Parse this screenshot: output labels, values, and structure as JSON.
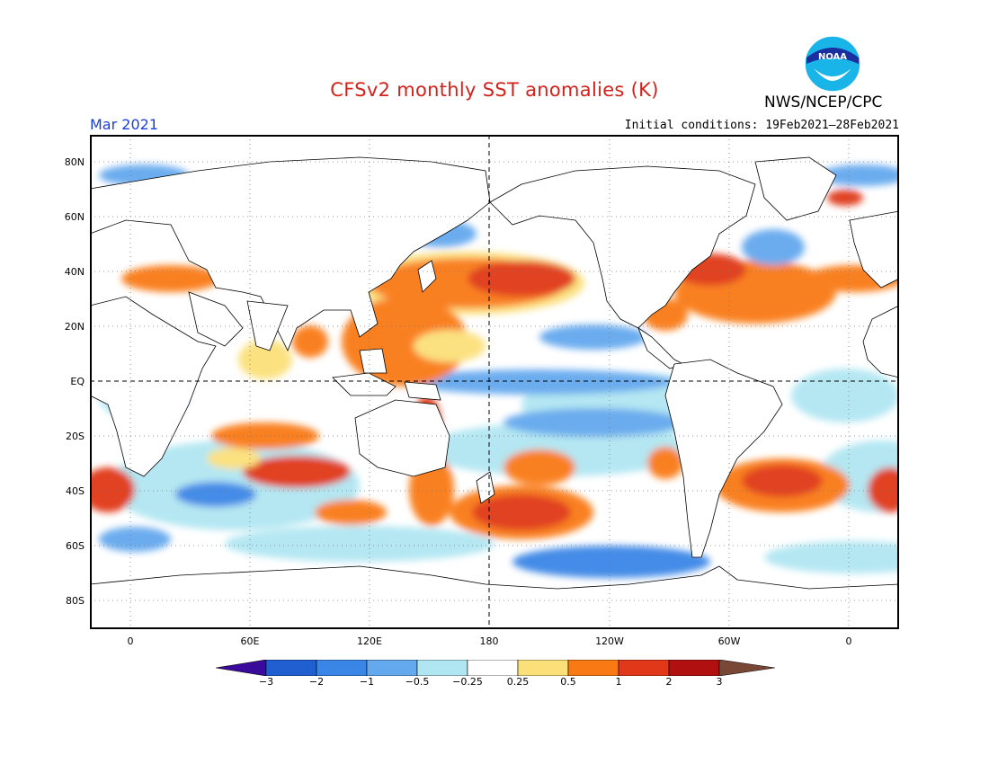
{
  "title": "CFSv2 monthly SST anomalies (K)",
  "agency": "NWS/NCEP/CPC",
  "logo_text": "NOAA",
  "month": "Mar 2021",
  "initial_conditions": "Initial conditions: 19Feb2021–28Feb2021",
  "map": {
    "lat_labels": [
      "80N",
      "60N",
      "40N",
      "20N",
      "EQ",
      "20S",
      "40S",
      "60S",
      "80S"
    ],
    "lon_labels": [
      "0",
      "60E",
      "120E",
      "180",
      "120W",
      "60W",
      "0"
    ],
    "reference_lines": [
      "equator",
      "dateline"
    ]
  },
  "colorbar": {
    "tick_labels": [
      "−3",
      "−2",
      "−1",
      "−0.5",
      "−0.25",
      "0.25",
      "0.5",
      "1",
      "2",
      "3"
    ],
    "colors": [
      "#3a0a9a",
      "#1f5fd0",
      "#3a86e6",
      "#64a8ee",
      "#b0e6f2",
      "#ffffff",
      "#fbe07a",
      "#f97a14",
      "#e03818",
      "#b01010",
      "#7a4636"
    ]
  },
  "colors": {
    "title": "#d2221b",
    "month": "#1a3fd8",
    "land": "#ffffff",
    "coast": "#000000"
  }
}
